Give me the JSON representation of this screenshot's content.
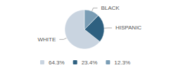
{
  "chart_data": {
    "type": "pie",
    "categories": [
      "WHITE",
      "HISPANIC",
      "BLACK"
    ],
    "values": [
      64.3,
      23.4,
      12.3
    ],
    "value_labels": [
      "64.3%",
      "23.4%",
      "12.3%"
    ],
    "colors": [
      "#c9d4e0",
      "#2e6080",
      "#7a9db5"
    ],
    "legend": "bottom"
  }
}
